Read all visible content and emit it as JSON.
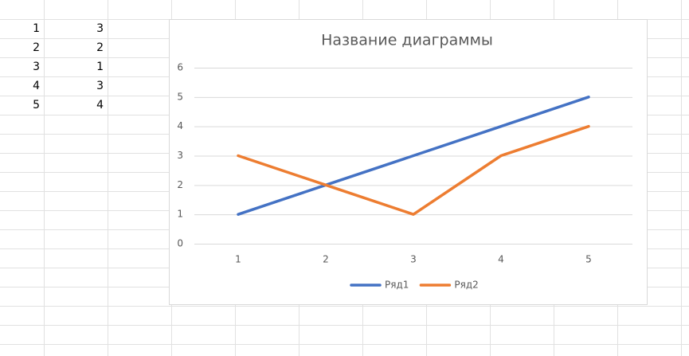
{
  "sheet": {
    "rows": [
      [
        1,
        3
      ],
      [
        2,
        2
      ],
      [
        3,
        1
      ],
      [
        4,
        3
      ],
      [
        5,
        4
      ]
    ]
  },
  "chart_data": {
    "type": "line",
    "title": "Название диаграммы",
    "categories": [
      "1",
      "2",
      "3",
      "4",
      "5"
    ],
    "series": [
      {
        "name": "Ряд1",
        "color": "#4472c4",
        "values": [
          1,
          2,
          3,
          4,
          5
        ]
      },
      {
        "name": "Ряд2",
        "color": "#ed7d31",
        "values": [
          3,
          2,
          1,
          3,
          4
        ]
      }
    ],
    "ylim": [
      0,
      6
    ],
    "yticks": [
      0,
      1,
      2,
      3,
      4,
      5,
      6
    ],
    "grid": true,
    "legend": "bottom"
  }
}
